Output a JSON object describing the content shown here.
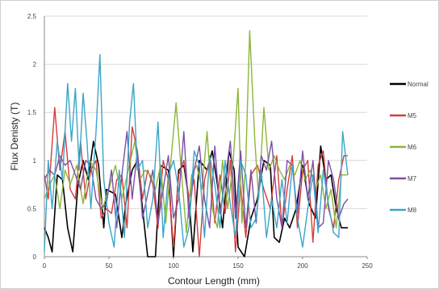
{
  "chart_data": {
    "type": "line",
    "title": "",
    "xlabel": "Contour Length (mm)",
    "ylabel": "Flux Denisty (T)",
    "xlim": [
      0,
      250
    ],
    "ylim": [
      0,
      2.5
    ],
    "xticks": [
      0,
      50,
      100,
      150,
      200,
      250
    ],
    "yticks": [
      0,
      0.5,
      1,
      1.5,
      2,
      2.5
    ],
    "ytick_labels": [
      "0",
      "0.5",
      "1",
      "1.5",
      "2",
      "2.5"
    ],
    "grid": "horizontal",
    "legend_position": "right",
    "series": [
      {
        "name": "Normal",
        "color": "#000000",
        "points": [
          [
            0,
            0.3
          ],
          [
            3,
            0.2
          ],
          [
            6,
            0.05
          ],
          [
            10,
            0.85
          ],
          [
            14,
            0.8
          ],
          [
            18,
            0.3
          ],
          [
            22,
            0.05
          ],
          [
            26,
            0.75
          ],
          [
            30,
            1.0
          ],
          [
            34,
            0.8
          ],
          [
            38,
            1.2
          ],
          [
            42,
            0.95
          ],
          [
            46,
            0.3
          ],
          [
            48,
            0.7
          ],
          [
            55,
            0.65
          ],
          [
            60,
            0.2
          ],
          [
            63,
            0.55
          ],
          [
            68,
            0.9
          ],
          [
            72,
            1.0
          ],
          [
            76,
            0.5
          ],
          [
            80,
            0.0
          ],
          [
            86,
            0.0
          ],
          [
            90,
            0.95
          ],
          [
            96,
            0.9
          ],
          [
            100,
            0.0
          ],
          [
            104,
            0.9
          ],
          [
            108,
            0.95
          ],
          [
            112,
            0.6
          ],
          [
            115,
            0.05
          ],
          [
            120,
            1.0
          ],
          [
            126,
            0.9
          ],
          [
            130,
            1.1
          ],
          [
            134,
            0.75
          ],
          [
            138,
            0.3
          ],
          [
            143,
            1.1
          ],
          [
            147,
            0.9
          ],
          [
            150,
            0.1
          ],
          [
            155,
            0.0
          ],
          [
            160,
            0.4
          ],
          [
            165,
            0.6
          ],
          [
            170,
            1.0
          ],
          [
            175,
            0.95
          ],
          [
            178,
            0.2
          ],
          [
            182,
            0.15
          ],
          [
            186,
            0.4
          ],
          [
            190,
            0.3
          ],
          [
            195,
            0.5
          ],
          [
            200,
            0.95
          ],
          [
            205,
            0.55
          ],
          [
            210,
            0.4
          ],
          [
            214,
            1.15
          ],
          [
            218,
            0.8
          ],
          [
            222,
            0.85
          ],
          [
            226,
            0.5
          ],
          [
            230,
            0.3
          ],
          [
            235,
            0.3
          ]
        ]
      },
      {
        "name": "M5",
        "color": "#d43c3c",
        "points": [
          [
            0,
            0.85
          ],
          [
            3,
            0.6
          ],
          [
            8,
            1.55
          ],
          [
            12,
            0.9
          ],
          [
            16,
            1.3
          ],
          [
            20,
            0.7
          ],
          [
            24,
            0.6
          ],
          [
            28,
            1.2
          ],
          [
            32,
            0.6
          ],
          [
            36,
            0.9
          ],
          [
            40,
            1.0
          ],
          [
            44,
            0.4
          ],
          [
            48,
            0.5
          ],
          [
            52,
            0.45
          ],
          [
            56,
            0.8
          ],
          [
            60,
            0.85
          ],
          [
            64,
            0.3
          ],
          [
            68,
            1.35
          ],
          [
            72,
            1.1
          ],
          [
            76,
            0.6
          ],
          [
            80,
            0.9
          ],
          [
            84,
            0.75
          ],
          [
            88,
            0.3
          ],
          [
            92,
            1.0
          ],
          [
            96,
            0.8
          ],
          [
            100,
            0.1
          ],
          [
            104,
            0.85
          ],
          [
            108,
            1.0
          ],
          [
            112,
            0.6
          ],
          [
            116,
            0.8
          ],
          [
            120,
            0.0
          ],
          [
            124,
            0.8
          ],
          [
            128,
            1.0
          ],
          [
            132,
            0.35
          ],
          [
            136,
            0.85
          ],
          [
            140,
            0.45
          ],
          [
            144,
            1.0
          ],
          [
            148,
            0.05
          ],
          [
            152,
            0.75
          ],
          [
            156,
            0.2
          ],
          [
            160,
            0.85
          ],
          [
            165,
            0.95
          ],
          [
            170,
            0.7
          ],
          [
            175,
            0.5
          ],
          [
            180,
            1.05
          ],
          [
            184,
            0.3
          ],
          [
            188,
            0.7
          ],
          [
            192,
            1.05
          ],
          [
            196,
            0.3
          ],
          [
            200,
            0.9
          ],
          [
            204,
            1.0
          ],
          [
            208,
            0.15
          ],
          [
            212,
            0.95
          ],
          [
            216,
            1.1
          ],
          [
            220,
            0.5
          ],
          [
            224,
            0.3
          ],
          [
            228,
            0.8
          ],
          [
            232,
            1.05
          ],
          [
            235,
            1.05
          ]
        ]
      },
      {
        "name": "M6",
        "color": "#8db53a",
        "points": [
          [
            0,
            0.6
          ],
          [
            4,
            0.75
          ],
          [
            8,
            0.85
          ],
          [
            12,
            0.5
          ],
          [
            16,
            0.9
          ],
          [
            20,
            0.75
          ],
          [
            25,
            0.95
          ],
          [
            30,
            0.55
          ],
          [
            35,
            1.0
          ],
          [
            40,
            0.9
          ],
          [
            45,
            0.5
          ],
          [
            50,
            0.7
          ],
          [
            55,
            0.95
          ],
          [
            60,
            0.6
          ],
          [
            65,
            0.9
          ],
          [
            70,
            1.2
          ],
          [
            74,
            0.8
          ],
          [
            78,
            0.9
          ],
          [
            82,
            0.85
          ],
          [
            86,
            0.7
          ],
          [
            90,
            0.95
          ],
          [
            94,
            0.35
          ],
          [
            98,
            1.0
          ],
          [
            102,
            1.6
          ],
          [
            106,
            0.9
          ],
          [
            110,
            0.25
          ],
          [
            114,
            0.85
          ],
          [
            118,
            0.95
          ],
          [
            122,
            0.7
          ],
          [
            126,
            1.3
          ],
          [
            130,
            0.5
          ],
          [
            134,
            0.3
          ],
          [
            138,
            1.0
          ],
          [
            142,
            0.5
          ],
          [
            146,
            0.95
          ],
          [
            150,
            1.75
          ],
          [
            153,
            0.35
          ],
          [
            156,
            1.0
          ],
          [
            159,
            2.35
          ],
          [
            163,
            1.2
          ],
          [
            166,
            0.6
          ],
          [
            170,
            1.55
          ],
          [
            174,
            0.9
          ],
          [
            178,
            1.05
          ],
          [
            182,
            0.9
          ],
          [
            186,
            0.8
          ],
          [
            190,
            0.95
          ],
          [
            194,
            0.85
          ],
          [
            198,
            1.0
          ],
          [
            202,
            0.8
          ],
          [
            206,
            0.9
          ],
          [
            210,
            0.7
          ],
          [
            214,
            0.85
          ],
          [
            218,
            0.5
          ],
          [
            222,
            0.7
          ],
          [
            226,
            0.3
          ],
          [
            230,
            0.85
          ],
          [
            235,
            0.85
          ]
        ]
      },
      {
        "name": "M7",
        "color": "#7b4fa6",
        "points": [
          [
            0,
            0.8
          ],
          [
            4,
            0.9
          ],
          [
            8,
            0.85
          ],
          [
            12,
            1.05
          ],
          [
            16,
            0.95
          ],
          [
            20,
            1.0
          ],
          [
            24,
            0.85
          ],
          [
            28,
            0.7
          ],
          [
            32,
            1.0
          ],
          [
            36,
            0.95
          ],
          [
            40,
            0.6
          ],
          [
            44,
            0.5
          ],
          [
            48,
            0.55
          ],
          [
            52,
            0.9
          ],
          [
            56,
            0.3
          ],
          [
            60,
            0.85
          ],
          [
            64,
            1.3
          ],
          [
            68,
            0.6
          ],
          [
            72,
            1.1
          ],
          [
            76,
            0.4
          ],
          [
            80,
            0.65
          ],
          [
            84,
            0.9
          ],
          [
            88,
            0.35
          ],
          [
            92,
            0.7
          ],
          [
            96,
            1.05
          ],
          [
            100,
            0.4
          ],
          [
            104,
            0.6
          ],
          [
            108,
            1.3
          ],
          [
            112,
            0.4
          ],
          [
            116,
            0.9
          ],
          [
            120,
            1.15
          ],
          [
            124,
            0.6
          ],
          [
            128,
            0.3
          ],
          [
            132,
            1.15
          ],
          [
            136,
            0.45
          ],
          [
            140,
            0.8
          ],
          [
            144,
            1.2
          ],
          [
            148,
            0.4
          ],
          [
            152,
            1.1
          ],
          [
            156,
            0.3
          ],
          [
            160,
            0.9
          ],
          [
            164,
            0.35
          ],
          [
            168,
            1.05
          ],
          [
            172,
            0.9
          ],
          [
            176,
            1.2
          ],
          [
            180,
            0.6
          ],
          [
            184,
            0.3
          ],
          [
            188,
            1.0
          ],
          [
            192,
            0.95
          ],
          [
            196,
            0.45
          ],
          [
            200,
            1.1
          ],
          [
            204,
            0.6
          ],
          [
            208,
            1.0
          ],
          [
            212,
            0.3
          ],
          [
            216,
            0.35
          ],
          [
            220,
            1.0
          ],
          [
            224,
            0.8
          ],
          [
            228,
            0.4
          ],
          [
            232,
            0.55
          ],
          [
            235,
            0.6
          ]
        ]
      },
      {
        "name": "M8",
        "color": "#3aa6c6",
        "points": [
          [
            0,
            0.05
          ],
          [
            3,
            1.0
          ],
          [
            6,
            0.5
          ],
          [
            10,
            1.2
          ],
          [
            14,
            0.8
          ],
          [
            18,
            1.8
          ],
          [
            21,
            1.2
          ],
          [
            24,
            1.75
          ],
          [
            27,
            0.9
          ],
          [
            30,
            1.7
          ],
          [
            33,
            1.2
          ],
          [
            36,
            0.5
          ],
          [
            40,
            1.3
          ],
          [
            43,
            2.1
          ],
          [
            46,
            0.8
          ],
          [
            50,
            0.35
          ],
          [
            54,
            0.1
          ],
          [
            58,
            0.9
          ],
          [
            62,
            0.2
          ],
          [
            66,
            1.4
          ],
          [
            69,
            1.8
          ],
          [
            72,
            0.9
          ],
          [
            76,
            1.0
          ],
          [
            80,
            0.3
          ],
          [
            84,
            0.6
          ],
          [
            88,
            1.4
          ],
          [
            92,
            0.2
          ],
          [
            96,
            0.85
          ],
          [
            100,
            1.0
          ],
          [
            104,
            0.7
          ],
          [
            108,
            0.1
          ],
          [
            112,
            0.3
          ],
          [
            116,
            1.1
          ],
          [
            120,
            0.95
          ],
          [
            124,
            0.2
          ],
          [
            128,
            1.05
          ],
          [
            132,
            0.75
          ],
          [
            136,
            0.3
          ],
          [
            140,
            1.0
          ],
          [
            144,
            0.55
          ],
          [
            148,
            0.2
          ],
          [
            152,
            1.0
          ],
          [
            156,
            0.85
          ],
          [
            160,
            0.3
          ],
          [
            164,
            0.4
          ],
          [
            168,
            0.9
          ],
          [
            172,
            0.2
          ],
          [
            176,
            0.6
          ],
          [
            180,
            0.3
          ],
          [
            184,
            0.8
          ],
          [
            188,
            0.35
          ],
          [
            192,
            0.95
          ],
          [
            196,
            0.4
          ],
          [
            200,
            0.1
          ],
          [
            204,
            0.5
          ],
          [
            208,
            0.85
          ],
          [
            212,
            0.25
          ],
          [
            216,
            0.9
          ],
          [
            220,
            0.55
          ],
          [
            224,
            0.25
          ],
          [
            228,
            0.2
          ],
          [
            231,
            1.3
          ],
          [
            235,
            0.85
          ]
        ]
      }
    ]
  }
}
